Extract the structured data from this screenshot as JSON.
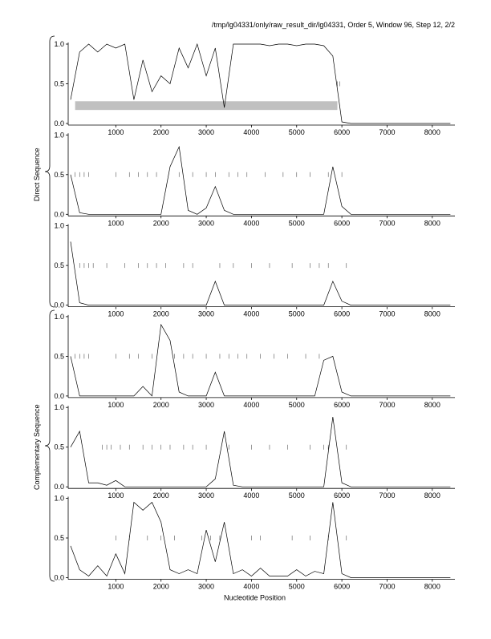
{
  "chart_data": [
    {
      "type": "line",
      "title": "/tmp/lg04331/only/raw_result_dir/lg04331, Order 5, Window 96, Step 12, 2/2",
      "x": [
        0,
        200,
        400,
        600,
        800,
        1000,
        1200,
        1400,
        1600,
        1800,
        2000,
        2200,
        2400,
        2600,
        2800,
        3000,
        3200,
        3400,
        3600,
        3800,
        4000,
        4200,
        4400,
        4600,
        4800,
        5000,
        5200,
        5400,
        5600,
        5800,
        6000,
        6200,
        6400,
        6600,
        6800,
        7000,
        7200,
        7400,
        7600,
        7800,
        8000,
        8200,
        8400
      ],
      "values": [
        0.3,
        0.9,
        1,
        0.9,
        1,
        0.95,
        1,
        0.3,
        0.8,
        0.4,
        0.6,
        0.5,
        0.95,
        0.7,
        1,
        0.6,
        0.95,
        0.2,
        1,
        1,
        1,
        1,
        0.98,
        1,
        1,
        0.98,
        1,
        1,
        0.98,
        0.85,
        0.02,
        0,
        0,
        0,
        0,
        0,
        0,
        0,
        0,
        0,
        0,
        0,
        0
      ],
      "color": "#000000",
      "markers": [
        5900,
        5950
      ],
      "marker_level": 0.5,
      "highlight": {
        "x": [
          100,
          5900
        ],
        "y": [
          0.17,
          0.28
        ],
        "color": "#c0c0c0"
      },
      "xlim": [
        0,
        8500
      ],
      "ylim": [
        0,
        1
      ],
      "xticks": [
        1000,
        2000,
        3000,
        4000,
        5000,
        6000,
        7000,
        8000
      ],
      "yticks": [
        {
          "value": 0,
          "label": "0.0"
        },
        0.5,
        {
          "value": 1,
          "label": "1.0"
        }
      ]
    },
    {
      "type": "line",
      "ylabel": "Direct Sequence",
      "x": [
        0,
        200,
        400,
        600,
        800,
        1000,
        1200,
        1400,
        1600,
        1800,
        2000,
        2200,
        2400,
        2600,
        2800,
        3000,
        3200,
        3400,
        3600,
        3800,
        4000,
        4200,
        4400,
        4600,
        4800,
        5000,
        5200,
        5400,
        5600,
        5800,
        6000,
        6200,
        6400,
        6600,
        6800,
        7000,
        7200,
        7400,
        7600,
        7800,
        8000,
        8200,
        8400
      ],
      "values": [
        0.5,
        0.02,
        0,
        0,
        0,
        0,
        0,
        0,
        0,
        0,
        0,
        0.6,
        0.85,
        0.05,
        0,
        0.08,
        0.35,
        0.05,
        0,
        0,
        0,
        0,
        0,
        0,
        0,
        0,
        0,
        0,
        0,
        0.6,
        0.1,
        0,
        0,
        0,
        0,
        0,
        0,
        0,
        0,
        0,
        0,
        0,
        0
      ],
      "color": "#000000",
      "markers": [
        100,
        200,
        300,
        400,
        1000,
        1300,
        1500,
        1700,
        1900,
        2400,
        2700,
        3000,
        3200,
        3500,
        3700,
        3900,
        4300,
        4700,
        5000,
        5300,
        5700,
        6000
      ],
      "marker_level": 0.5,
      "xlim": [
        0,
        8500
      ],
      "ylim": [
        0,
        1
      ],
      "xticks": [
        1000,
        2000,
        3000,
        4000,
        5000,
        6000,
        7000,
        8000
      ],
      "yticks": [
        {
          "value": 0,
          "label": "0.0"
        },
        0.5,
        {
          "value": 1,
          "label": "1.0"
        }
      ]
    },
    {
      "type": "line",
      "x": [
        0,
        200,
        400,
        600,
        800,
        1000,
        1200,
        1400,
        1600,
        1800,
        2000,
        2200,
        2400,
        2600,
        2800,
        3000,
        3200,
        3400,
        3600,
        3800,
        4000,
        4200,
        4400,
        4600,
        4800,
        5000,
        5200,
        5400,
        5600,
        5800,
        6000,
        6200,
        6400,
        6600,
        6800,
        7000,
        7200,
        7400,
        7600,
        7800,
        8000,
        8200,
        8400
      ],
      "values": [
        0.8,
        0.03,
        0,
        0,
        0,
        0,
        0,
        0,
        0,
        0,
        0,
        0,
        0,
        0,
        0,
        0,
        0.3,
        0,
        0,
        0,
        0,
        0,
        0,
        0,
        0,
        0,
        0,
        0,
        0,
        0.3,
        0.05,
        0,
        0,
        0,
        0,
        0,
        0,
        0,
        0,
        0,
        0,
        0,
        0
      ],
      "color": "#000000",
      "markers": [
        200,
        300,
        400,
        500,
        800,
        1200,
        1500,
        1700,
        1900,
        2100,
        2500,
        2700,
        3300,
        3600,
        4000,
        4400,
        4900,
        5300,
        5500,
        5700,
        6100
      ],
      "marker_level": 0.5,
      "xlim": [
        0,
        8500
      ],
      "ylim": [
        0,
        1
      ],
      "xticks": [
        1000,
        2000,
        3000,
        4000,
        5000,
        6000,
        7000,
        8000
      ],
      "yticks": [
        {
          "value": 0,
          "label": "0.0"
        },
        0.5,
        {
          "value": 1,
          "label": "1.0"
        }
      ]
    },
    {
      "type": "line",
      "x": [
        0,
        200,
        400,
        600,
        800,
        1000,
        1200,
        1400,
        1600,
        1800,
        2000,
        2200,
        2400,
        2600,
        2800,
        3000,
        3200,
        3400,
        3600,
        3800,
        4000,
        4200,
        4400,
        4600,
        4800,
        5000,
        5200,
        5400,
        5600,
        5800,
        6000,
        6200,
        6400,
        6600,
        6800,
        7000,
        7200,
        7400,
        7600,
        7800,
        8000,
        8200,
        8400
      ],
      "values": [
        0.5,
        0,
        0,
        0,
        0,
        0,
        0,
        0,
        0.12,
        0,
        0.9,
        0.7,
        0.05,
        0,
        0,
        0,
        0.3,
        0,
        0,
        0,
        0,
        0,
        0,
        0,
        0,
        0,
        0,
        0,
        0.45,
        0.5,
        0.05,
        0,
        0,
        0,
        0,
        0,
        0,
        0,
        0,
        0,
        0,
        0,
        0
      ],
      "color": "#000000",
      "markers": [
        100,
        200,
        300,
        400,
        1000,
        1300,
        1500,
        1800,
        2300,
        2500,
        2700,
        3000,
        3300,
        3500,
        3700,
        3900,
        4200,
        4500,
        4800,
        5200,
        5500
      ],
      "marker_level": 0.5,
      "xlim": [
        0,
        8500
      ],
      "ylim": [
        0,
        1
      ],
      "xticks": [
        1000,
        2000,
        3000,
        4000,
        5000,
        6000,
        7000,
        8000
      ],
      "yticks": [
        {
          "value": 0,
          "label": "0.0"
        },
        0.5,
        {
          "value": 1,
          "label": "1.0"
        }
      ]
    },
    {
      "type": "line",
      "ylabel": "Complementary Sequence",
      "x": [
        0,
        200,
        400,
        600,
        800,
        1000,
        1200,
        1400,
        1600,
        1800,
        2000,
        2200,
        2400,
        2600,
        2800,
        3000,
        3200,
        3400,
        3600,
        3800,
        4000,
        4200,
        4400,
        4600,
        4800,
        5000,
        5200,
        5400,
        5600,
        5800,
        6000,
        6200,
        6400,
        6600,
        6800,
        7000,
        7200,
        7400,
        7600,
        7800,
        8000,
        8200,
        8400
      ],
      "values": [
        0.5,
        0.7,
        0.05,
        0.05,
        0.02,
        0.08,
        0,
        0,
        0,
        0,
        0,
        0,
        0,
        0,
        0,
        0,
        0.1,
        0.7,
        0.02,
        0,
        0,
        0,
        0,
        0,
        0,
        0,
        0,
        0,
        0,
        0.88,
        0.05,
        0,
        0,
        0,
        0,
        0,
        0,
        0,
        0,
        0,
        0,
        0,
        0
      ],
      "color": "#000000",
      "markers": [
        700,
        800,
        900,
        1100,
        1300,
        1600,
        1800,
        2000,
        2200,
        2500,
        2700,
        3000,
        3500,
        4000,
        4400,
        4800,
        5300,
        5600,
        5700,
        6100
      ],
      "marker_level": 0.5,
      "xlim": [
        0,
        8500
      ],
      "ylim": [
        0,
        1
      ],
      "xticks": [
        1000,
        2000,
        3000,
        4000,
        5000,
        6000,
        7000,
        8000
      ],
      "yticks": [
        {
          "value": 0,
          "label": "0.0"
        },
        0.5,
        {
          "value": 1,
          "label": "1.0"
        }
      ]
    },
    {
      "type": "line",
      "xlabel": "Nucleotide Position",
      "x": [
        0,
        200,
        400,
        600,
        800,
        1000,
        1200,
        1400,
        1600,
        1800,
        2000,
        2200,
        2400,
        2600,
        2800,
        3000,
        3200,
        3400,
        3600,
        3800,
        4000,
        4200,
        4400,
        4600,
        4800,
        5000,
        5200,
        5400,
        5600,
        5800,
        6000,
        6200,
        6400,
        6600,
        6800,
        7000,
        7200,
        7400,
        7600,
        7800,
        8000,
        8200,
        8400
      ],
      "values": [
        0.4,
        0.1,
        0.02,
        0.15,
        0.02,
        0.3,
        0.05,
        0.95,
        0.85,
        0.95,
        0.7,
        0.1,
        0.05,
        0.1,
        0.05,
        0.6,
        0.2,
        0.7,
        0.05,
        0.1,
        0.02,
        0.12,
        0.02,
        0.02,
        0.02,
        0.1,
        0.02,
        0.08,
        0.05,
        0.95,
        0.05,
        0,
        0,
        0,
        0,
        0,
        0,
        0,
        0,
        0,
        0,
        0,
        0
      ],
      "color": "#000000",
      "markers": [
        1000,
        1300,
        1700,
        2000,
        2300,
        2900,
        3100,
        3300,
        4000,
        4200,
        4900,
        5300,
        5700,
        6100
      ],
      "marker_level": 0.5,
      "xlim": [
        0,
        8500
      ],
      "ylim": [
        0,
        1
      ],
      "xticks": [
        1000,
        2000,
        3000,
        4000,
        5000,
        6000,
        7000,
        8000
      ],
      "yticks": [
        {
          "value": 0,
          "label": "0.0"
        },
        0.5,
        {
          "value": 1,
          "label": "1.0"
        }
      ]
    }
  ]
}
